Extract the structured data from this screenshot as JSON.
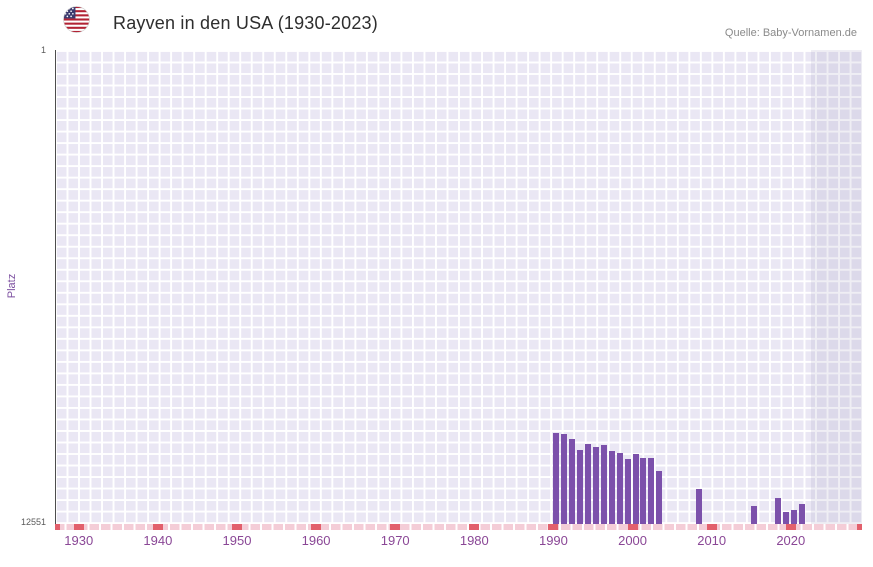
{
  "header": {
    "title": "Rayven in den USA (1930-2023)",
    "source": "Quelle: Baby-Vornamen.de"
  },
  "chart_data": {
    "type": "bar",
    "title": "Rayven in den USA (1930-2023)",
    "xlabel": "",
    "ylabel": "Platz",
    "y_axis": {
      "top_label": "1",
      "bottom_label": "12551",
      "min": 1,
      "max": 12551,
      "inverted": true
    },
    "x_domain": [
      1927,
      2029
    ],
    "x_ticks": [
      1930,
      1940,
      1950,
      1960,
      1970,
      1980,
      1990,
      2000,
      2010,
      2020
    ],
    "grid": true,
    "legend": "none",
    "highlight_band": {
      "from_year": 2022.5,
      "to_year": 2029
    },
    "points": [
      {
        "year": 1990,
        "rank": 10150
      },
      {
        "year": 1991,
        "rank": 10180
      },
      {
        "year": 1992,
        "rank": 10300
      },
      {
        "year": 1993,
        "rank": 10600
      },
      {
        "year": 1994,
        "rank": 10420
      },
      {
        "year": 1995,
        "rank": 10500
      },
      {
        "year": 1996,
        "rank": 10470
      },
      {
        "year": 1997,
        "rank": 10630
      },
      {
        "year": 1998,
        "rank": 10680
      },
      {
        "year": 1999,
        "rank": 10840
      },
      {
        "year": 2000,
        "rank": 10700
      },
      {
        "year": 2001,
        "rank": 10790
      },
      {
        "year": 2002,
        "rank": 10810
      },
      {
        "year": 2003,
        "rank": 11150
      },
      {
        "year": 2008,
        "rank": 11620
      },
      {
        "year": 2015,
        "rank": 12070
      },
      {
        "year": 2018,
        "rank": 11860
      },
      {
        "year": 2019,
        "rank": 12230
      },
      {
        "year": 2020,
        "rank": 12180
      },
      {
        "year": 2021,
        "rank": 12020
      }
    ],
    "colors": {
      "bar": "#7c51ab",
      "plot_background": "#eae7f4",
      "grid_line": "#ffffff",
      "tick_label": "#8a4796",
      "accent_purple": "#7c4fa0",
      "axis_strip": "#f4cdd7",
      "decade_marker": "#e2606c",
      "band": "rgba(130,120,170,0.13)",
      "flag_red": "#b22234",
      "flag_blue": "#3c3b6e"
    }
  }
}
